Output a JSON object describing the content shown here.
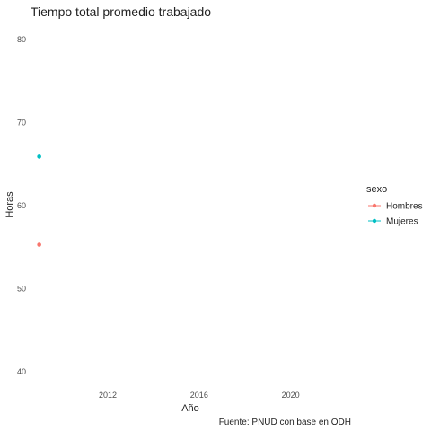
{
  "chart_data": {
    "type": "scatter",
    "title": "Tiempo total promedio trabajado",
    "xlabel": "Año",
    "ylabel": "Horas",
    "caption": "Fuente: PNUD con base en ODH",
    "xlim": [
      2008.7,
      2023.0
    ],
    "ylim": [
      38.5,
      81.5
    ],
    "x_ticks": [
      2012,
      2016,
      2020
    ],
    "y_ticks": [
      40,
      50,
      60,
      70,
      80
    ],
    "grid": false,
    "legend": {
      "title": "sexo",
      "position": "right"
    },
    "series": [
      {
        "name": "Hombres",
        "color": "#F8766D",
        "points": [
          {
            "x": 2009,
            "y": 55.3
          }
        ]
      },
      {
        "name": "Mujeres",
        "color": "#00BFC4",
        "points": [
          {
            "x": 2009,
            "y": 65.9
          }
        ]
      }
    ]
  }
}
